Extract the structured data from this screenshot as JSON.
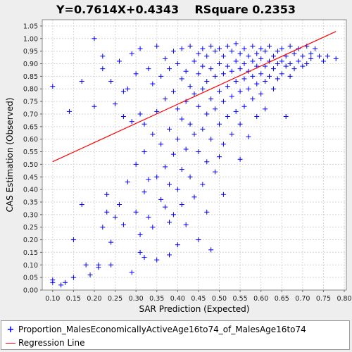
{
  "chart_data": {
    "type": "scatter",
    "title": "Y=0.7614X+0.4343    RSquare 0.2353",
    "xlabel": "SAR Prediction (Expected)",
    "ylabel": "CAS Estimation (Observed)",
    "xlim": [
      0.075,
      0.805
    ],
    "ylim": [
      0.0,
      1.075
    ],
    "xticks": [
      0.1,
      0.15,
      0.2,
      0.25,
      0.3,
      0.35,
      0.4,
      0.45,
      0.5,
      0.55,
      0.6,
      0.65,
      0.7,
      0.75,
      0.8
    ],
    "yticks": [
      0.0,
      0.05,
      0.1,
      0.15,
      0.2,
      0.25,
      0.3,
      0.35,
      0.4,
      0.45,
      0.5,
      0.55,
      0.6,
      0.65,
      0.7,
      0.75,
      0.8,
      0.85,
      0.9,
      0.95,
      1.0,
      1.05
    ],
    "grid": true,
    "legend_position": "bottom",
    "series": [
      {
        "name": "Proportion_MalesEconomicallyActiveAge16to74_of_MalesAge16to74",
        "color": "#0000ff",
        "marker": "plus",
        "points": [
          [
            0.1,
            0.81
          ],
          [
            0.1,
            0.04
          ],
          [
            0.1,
            0.03
          ],
          [
            0.12,
            0.02
          ],
          [
            0.13,
            0.03
          ],
          [
            0.14,
            0.71
          ],
          [
            0.15,
            0.05
          ],
          [
            0.15,
            0.2
          ],
          [
            0.17,
            0.34
          ],
          [
            0.17,
            0.83
          ],
          [
            0.18,
            0.1
          ],
          [
            0.19,
            0.06
          ],
          [
            0.2,
            1.0
          ],
          [
            0.2,
            0.73
          ],
          [
            0.21,
            0.1
          ],
          [
            0.21,
            0.09
          ],
          [
            0.22,
            0.88
          ],
          [
            0.22,
            0.93
          ],
          [
            0.22,
            0.25
          ],
          [
            0.23,
            0.38
          ],
          [
            0.23,
            0.31
          ],
          [
            0.24,
            0.19
          ],
          [
            0.24,
            0.1
          ],
          [
            0.24,
            0.83
          ],
          [
            0.25,
            0.74
          ],
          [
            0.25,
            0.29
          ],
          [
            0.26,
            0.34
          ],
          [
            0.26,
            0.91
          ],
          [
            0.27,
            0.79
          ],
          [
            0.27,
            0.69
          ],
          [
            0.27,
            0.26
          ],
          [
            0.28,
            0.8
          ],
          [
            0.28,
            0.43
          ],
          [
            0.29,
            0.07
          ],
          [
            0.29,
            0.67
          ],
          [
            0.29,
            0.94
          ],
          [
            0.3,
            0.86
          ],
          [
            0.3,
            0.31
          ],
          [
            0.3,
            0.5
          ],
          [
            0.31,
            0.7
          ],
          [
            0.31,
            0.22
          ],
          [
            0.31,
            0.15
          ],
          [
            0.31,
            0.96
          ],
          [
            0.32,
            0.66
          ],
          [
            0.32,
            0.55
          ],
          [
            0.32,
            0.39
          ],
          [
            0.32,
            0.13
          ],
          [
            0.33,
            0.88
          ],
          [
            0.33,
            0.44
          ],
          [
            0.33,
            0.29
          ],
          [
            0.34,
            0.82
          ],
          [
            0.34,
            0.62
          ],
          [
            0.34,
            0.25
          ],
          [
            0.35,
            0.97
          ],
          [
            0.35,
            0.71
          ],
          [
            0.35,
            0.45
          ],
          [
            0.35,
            0.12
          ],
          [
            0.36,
            0.85
          ],
          [
            0.36,
            0.58
          ],
          [
            0.36,
            0.36
          ],
          [
            0.37,
            0.92
          ],
          [
            0.37,
            0.76
          ],
          [
            0.37,
            0.49
          ],
          [
            0.37,
            0.33
          ],
          [
            0.38,
            0.88
          ],
          [
            0.38,
            0.64
          ],
          [
            0.38,
            0.42
          ],
          [
            0.38,
            0.27
          ],
          [
            0.38,
            0.14
          ],
          [
            0.39,
            0.95
          ],
          [
            0.39,
            0.79
          ],
          [
            0.39,
            0.54
          ],
          [
            0.39,
            0.3
          ],
          [
            0.4,
            0.9
          ],
          [
            0.4,
            0.72
          ],
          [
            0.4,
            0.6
          ],
          [
            0.4,
            0.4
          ],
          [
            0.4,
            0.18
          ],
          [
            0.41,
            0.96
          ],
          [
            0.41,
            0.84
          ],
          [
            0.41,
            0.68
          ],
          [
            0.41,
            0.48
          ],
          [
            0.41,
            0.34
          ],
          [
            0.42,
            0.87
          ],
          [
            0.42,
            0.75
          ],
          [
            0.42,
            0.56
          ],
          [
            0.42,
            0.26
          ],
          [
            0.43,
            0.97
          ],
          [
            0.43,
            0.81
          ],
          [
            0.43,
            0.66
          ],
          [
            0.43,
            0.45
          ],
          [
            0.44,
            0.91
          ],
          [
            0.44,
            0.78
          ],
          [
            0.44,
            0.62
          ],
          [
            0.44,
            0.37
          ],
          [
            0.45,
            0.94
          ],
          [
            0.45,
            0.86
          ],
          [
            0.45,
            0.73
          ],
          [
            0.45,
            0.55
          ],
          [
            0.45,
            0.2
          ],
          [
            0.46,
            0.96
          ],
          [
            0.46,
            0.89
          ],
          [
            0.46,
            0.8
          ],
          [
            0.46,
            0.64
          ],
          [
            0.46,
            0.42
          ],
          [
            0.47,
            0.93
          ],
          [
            0.47,
            0.83
          ],
          [
            0.47,
            0.7
          ],
          [
            0.47,
            0.51
          ],
          [
            0.47,
            0.31
          ],
          [
            0.48,
            0.97
          ],
          [
            0.48,
            0.88
          ],
          [
            0.48,
            0.76
          ],
          [
            0.48,
            0.6
          ],
          [
            0.48,
            0.16
          ],
          [
            0.49,
            0.95
          ],
          [
            0.49,
            0.85
          ],
          [
            0.49,
            0.72
          ],
          [
            0.49,
            0.47
          ],
          [
            0.5,
            0.96
          ],
          [
            0.5,
            0.9
          ],
          [
            0.5,
            0.79
          ],
          [
            0.5,
            0.66
          ],
          [
            0.5,
            0.53
          ],
          [
            0.51,
            0.93
          ],
          [
            0.51,
            0.86
          ],
          [
            0.51,
            0.75
          ],
          [
            0.51,
            0.58
          ],
          [
            0.51,
            0.38
          ],
          [
            0.52,
            0.97
          ],
          [
            0.52,
            0.89
          ],
          [
            0.52,
            0.81
          ],
          [
            0.52,
            0.69
          ],
          [
            0.53,
            0.95
          ],
          [
            0.53,
            0.87
          ],
          [
            0.53,
            0.77
          ],
          [
            0.53,
            0.62
          ],
          [
            0.54,
            0.98
          ],
          [
            0.54,
            0.91
          ],
          [
            0.54,
            0.83
          ],
          [
            0.54,
            0.71
          ],
          [
            0.55,
            0.94
          ],
          [
            0.55,
            0.88
          ],
          [
            0.55,
            0.79
          ],
          [
            0.55,
            0.66
          ],
          [
            0.55,
            0.52
          ],
          [
            0.56,
            0.96
          ],
          [
            0.56,
            0.9
          ],
          [
            0.56,
            0.84
          ],
          [
            0.56,
            0.73
          ],
          [
            0.57,
            0.93
          ],
          [
            0.57,
            0.87
          ],
          [
            0.57,
            0.8
          ],
          [
            0.57,
            0.61
          ],
          [
            0.58,
            0.97
          ],
          [
            0.58,
            0.91
          ],
          [
            0.58,
            0.85
          ],
          [
            0.58,
            0.76
          ],
          [
            0.59,
            0.94
          ],
          [
            0.59,
            0.89
          ],
          [
            0.59,
            0.82
          ],
          [
            0.59,
            0.69
          ],
          [
            0.6,
            0.96
          ],
          [
            0.6,
            0.92
          ],
          [
            0.6,
            0.86
          ],
          [
            0.6,
            0.78
          ],
          [
            0.61,
            0.95
          ],
          [
            0.61,
            0.89
          ],
          [
            0.61,
            0.83
          ],
          [
            0.61,
            0.72
          ],
          [
            0.62,
            0.97
          ],
          [
            0.62,
            0.91
          ],
          [
            0.62,
            0.85
          ],
          [
            0.63,
            0.93
          ],
          [
            0.63,
            0.88
          ],
          [
            0.63,
            0.8
          ],
          [
            0.64,
            0.95
          ],
          [
            0.64,
            0.9
          ],
          [
            0.64,
            0.84
          ],
          [
            0.65,
            0.96
          ],
          [
            0.65,
            0.91
          ],
          [
            0.65,
            0.86
          ],
          [
            0.66,
            0.93
          ],
          [
            0.66,
            0.89
          ],
          [
            0.66,
            0.69
          ],
          [
            0.67,
            0.97
          ],
          [
            0.67,
            0.9
          ],
          [
            0.67,
            0.85
          ],
          [
            0.68,
            0.94
          ],
          [
            0.68,
            0.88
          ],
          [
            0.69,
            0.96
          ],
          [
            0.69,
            0.91
          ],
          [
            0.7,
            0.93
          ],
          [
            0.7,
            0.89
          ],
          [
            0.71,
            0.97
          ],
          [
            0.71,
            0.9
          ],
          [
            0.72,
            0.94
          ],
          [
            0.72,
            0.92
          ],
          [
            0.73,
            0.96
          ],
          [
            0.74,
            0.93
          ],
          [
            0.75,
            0.91
          ],
          [
            0.76,
            0.93
          ],
          [
            0.78,
            0.92
          ]
        ]
      },
      {
        "name": "Regression Line",
        "color": "#ff0000",
        "type": "line",
        "points": [
          [
            0.1,
            0.5104
          ],
          [
            0.78,
            1.0282
          ]
        ]
      }
    ]
  },
  "legend": {
    "items": [
      {
        "label": "Proportion_MalesEconomicallyActiveAge16to74_of_MalesAge16to74",
        "color": "#0000ff",
        "symbol": "plus"
      },
      {
        "label": "Regression Line",
        "color": "#ff0000",
        "symbol": "line"
      }
    ]
  }
}
